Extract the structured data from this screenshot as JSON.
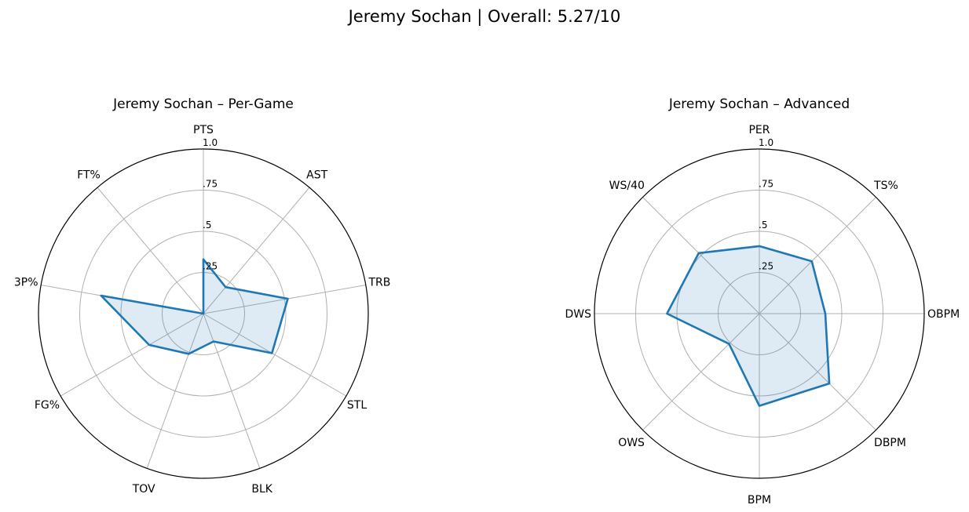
{
  "figure": {
    "suptitle": "Jeremy Sochan | Overall: 5.27/10"
  },
  "chart_data": [
    {
      "type": "radar",
      "title": "Jeremy Sochan – Per-Game",
      "categories": [
        "PTS",
        "AST",
        "TRB",
        "STL",
        "BLK",
        "TOV",
        "FG%",
        "3P%",
        "FT%"
      ],
      "values": [
        0.33,
        0.21,
        0.52,
        0.48,
        0.18,
        0.26,
        0.38,
        0.63,
        0.0
      ],
      "rlim": [
        0,
        1.0
      ],
      "rticks": [
        0.25,
        0.5,
        0.75,
        1.0
      ],
      "rtick_labels": [
        ".25",
        ".5",
        ".75",
        "1.0"
      ],
      "grid": true,
      "line_color": "#1f77b4",
      "fill_color": "#1f77b4"
    },
    {
      "type": "radar",
      "title": "Jeremy Sochan – Advanced",
      "categories": [
        "PER",
        "TS%",
        "OBPM",
        "DBPM",
        "BPM",
        "OWS",
        "DWS",
        "WS/40"
      ],
      "values": [
        0.41,
        0.45,
        0.4,
        0.6,
        0.56,
        0.26,
        0.56,
        0.52
      ],
      "rlim": [
        0,
        1.0
      ],
      "rticks": [
        0.25,
        0.5,
        0.75,
        1.0
      ],
      "rtick_labels": [
        ".25",
        ".5",
        ".75",
        "1.0"
      ],
      "grid": true,
      "line_color": "#1f77b4",
      "fill_color": "#1f77b4"
    }
  ]
}
